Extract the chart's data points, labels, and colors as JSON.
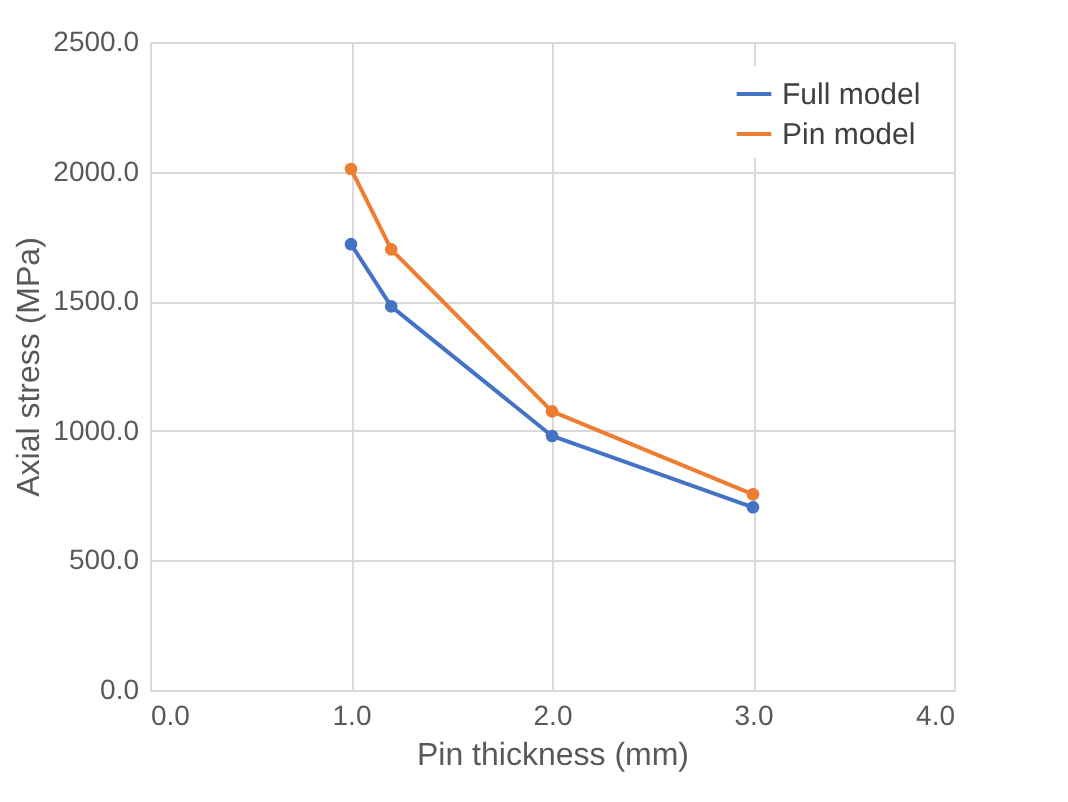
{
  "chart_data": {
    "type": "line",
    "xlabel": "Pin thickness (mm)",
    "ylabel": "Axial stress (MPa)",
    "x": [
      1.0,
      1.2,
      2.0,
      3.0
    ],
    "series": [
      {
        "name": "Full model",
        "color": "#4472c4",
        "values": [
          1720,
          1480,
          980,
          705
        ]
      },
      {
        "name": "Pin model",
        "color": "#ed7d31",
        "values": [
          2010,
          1700,
          1075,
          755
        ]
      }
    ],
    "xlim": [
      0,
      4
    ],
    "xticks": [
      {
        "value": 0,
        "label": "0.0"
      },
      {
        "value": 1,
        "label": "1.0"
      },
      {
        "value": 2,
        "label": "2.0"
      },
      {
        "value": 3,
        "label": "3.0"
      },
      {
        "value": 4,
        "label": "4.0"
      }
    ],
    "ylim": [
      0,
      2500
    ],
    "yticks": [
      {
        "value": 0,
        "label": "0.0"
      },
      {
        "value": 500,
        "label": "500.0"
      },
      {
        "value": 1000,
        "label": "1000.0"
      },
      {
        "value": 1500,
        "label": "1500.0"
      },
      {
        "value": 2000,
        "label": "2000.0"
      },
      {
        "value": 2500,
        "label": "2500.0"
      }
    ],
    "grid": true,
    "legend": "top right",
    "marker": "circle",
    "line_style": "solid"
  }
}
